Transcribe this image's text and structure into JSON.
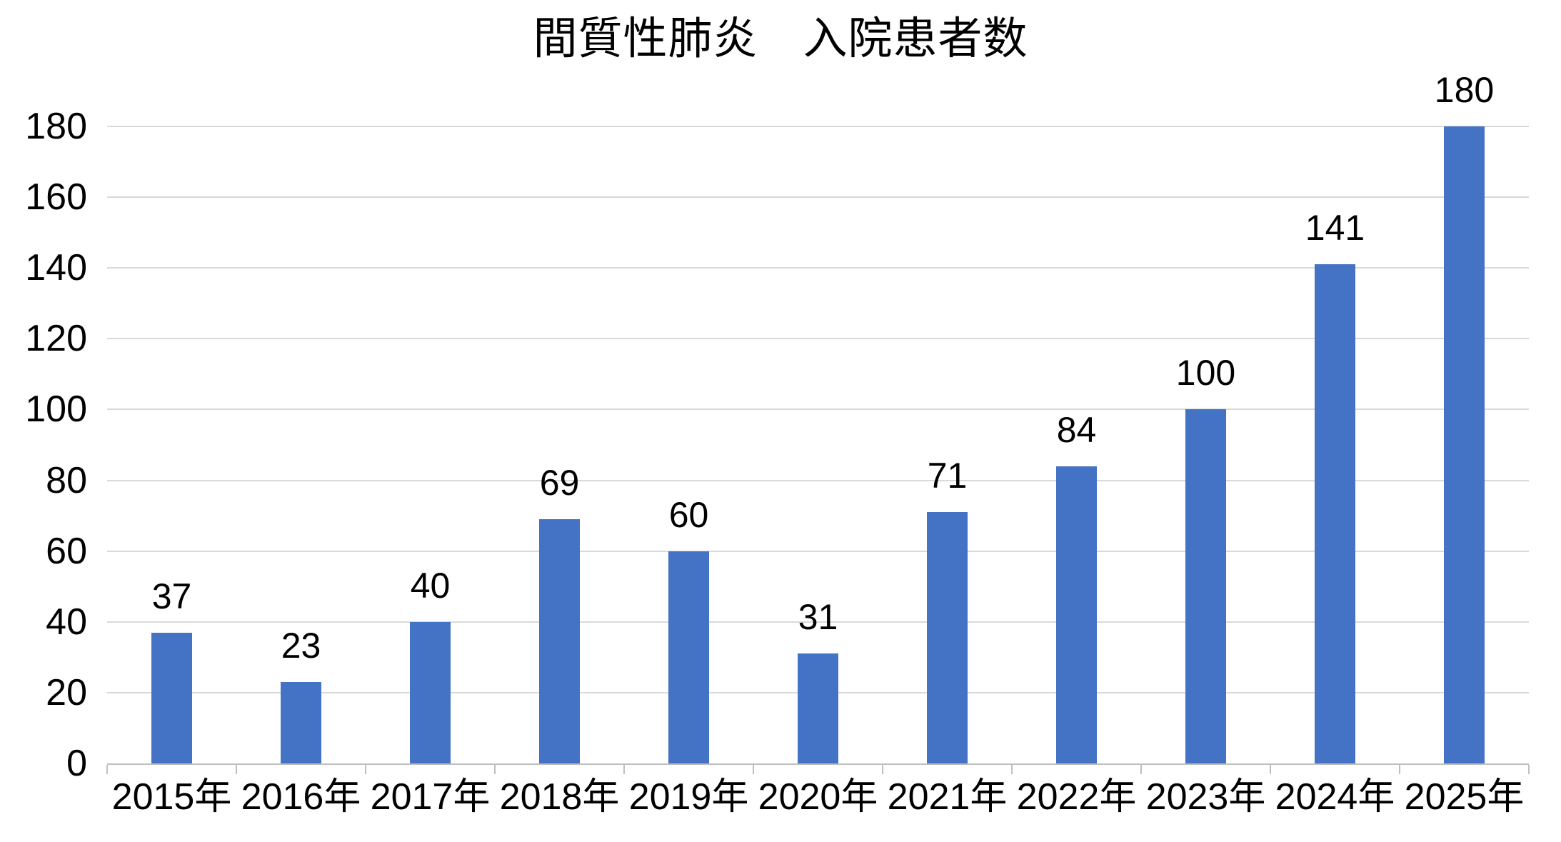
{
  "chart_data": {
    "type": "bar",
    "title": "間質性肺炎　入院患者数",
    "categories": [
      "2015年",
      "2016年",
      "2017年",
      "2018年",
      "2019年",
      "2020年",
      "2021年",
      "2022年",
      "2023年",
      "2024年",
      "2025年"
    ],
    "values": [
      37,
      23,
      40,
      69,
      60,
      31,
      71,
      84,
      100,
      141,
      180
    ],
    "data_labels": [
      37,
      23,
      40,
      69,
      60,
      31,
      71,
      84,
      100,
      141,
      180
    ],
    "xlabel": "",
    "ylabel": "",
    "ylim": [
      0,
      180
    ],
    "ytick_step": 20,
    "grid": true,
    "legend_position": "none",
    "bar_color": "#4472C4",
    "gridline_color": "#D9D9D9",
    "axis_line_color": "#BFBFBF",
    "text_color": "#000000"
  }
}
